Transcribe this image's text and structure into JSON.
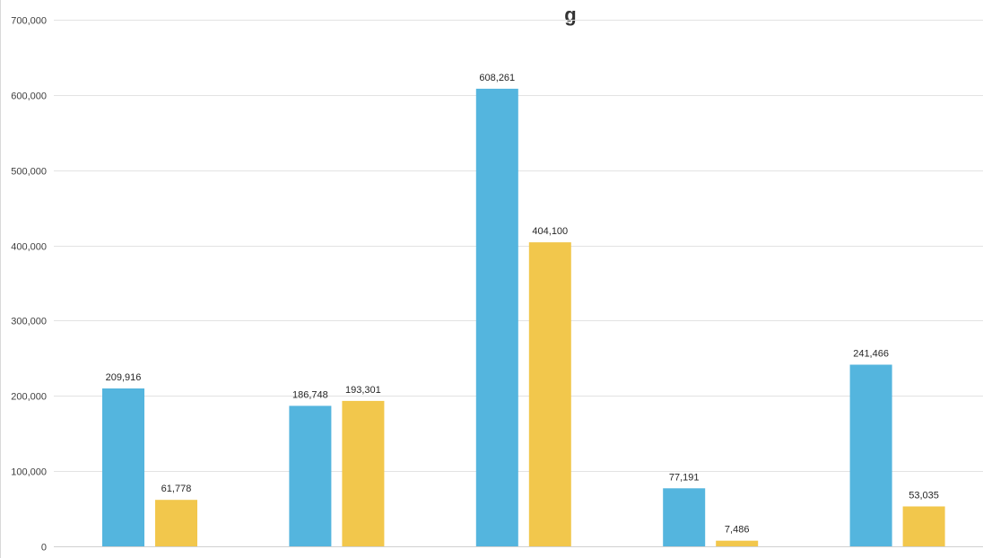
{
  "chart_data": {
    "type": "bar",
    "title": "g",
    "xlabel": "",
    "ylabel": "",
    "categories": [
      "",
      "",
      "",
      "",
      ""
    ],
    "series": [
      {
        "color": "#54b5de",
        "values": [
          209916,
          186748,
          608261,
          77191,
          241466
        ]
      },
      {
        "color": "#f2c74c",
        "values": [
          61778,
          193301,
          404100,
          7486,
          53035
        ]
      }
    ],
    "data_labels": [
      [
        "209,916",
        "186,748",
        "608,261",
        "77,191",
        "241,466"
      ],
      [
        "61,778",
        "193,301",
        "404,100",
        "7,486",
        "53,035"
      ]
    ],
    "ylim": [
      0,
      700000
    ],
    "y_ticks": [
      0,
      100000,
      200000,
      300000,
      400000,
      500000,
      600000,
      700000
    ],
    "y_tick_labels": [
      "0",
      "100,000",
      "200,000",
      "300,000",
      "400,000",
      "500,000",
      "600,000",
      "700,000"
    ],
    "grid": true,
    "legend": "none"
  }
}
